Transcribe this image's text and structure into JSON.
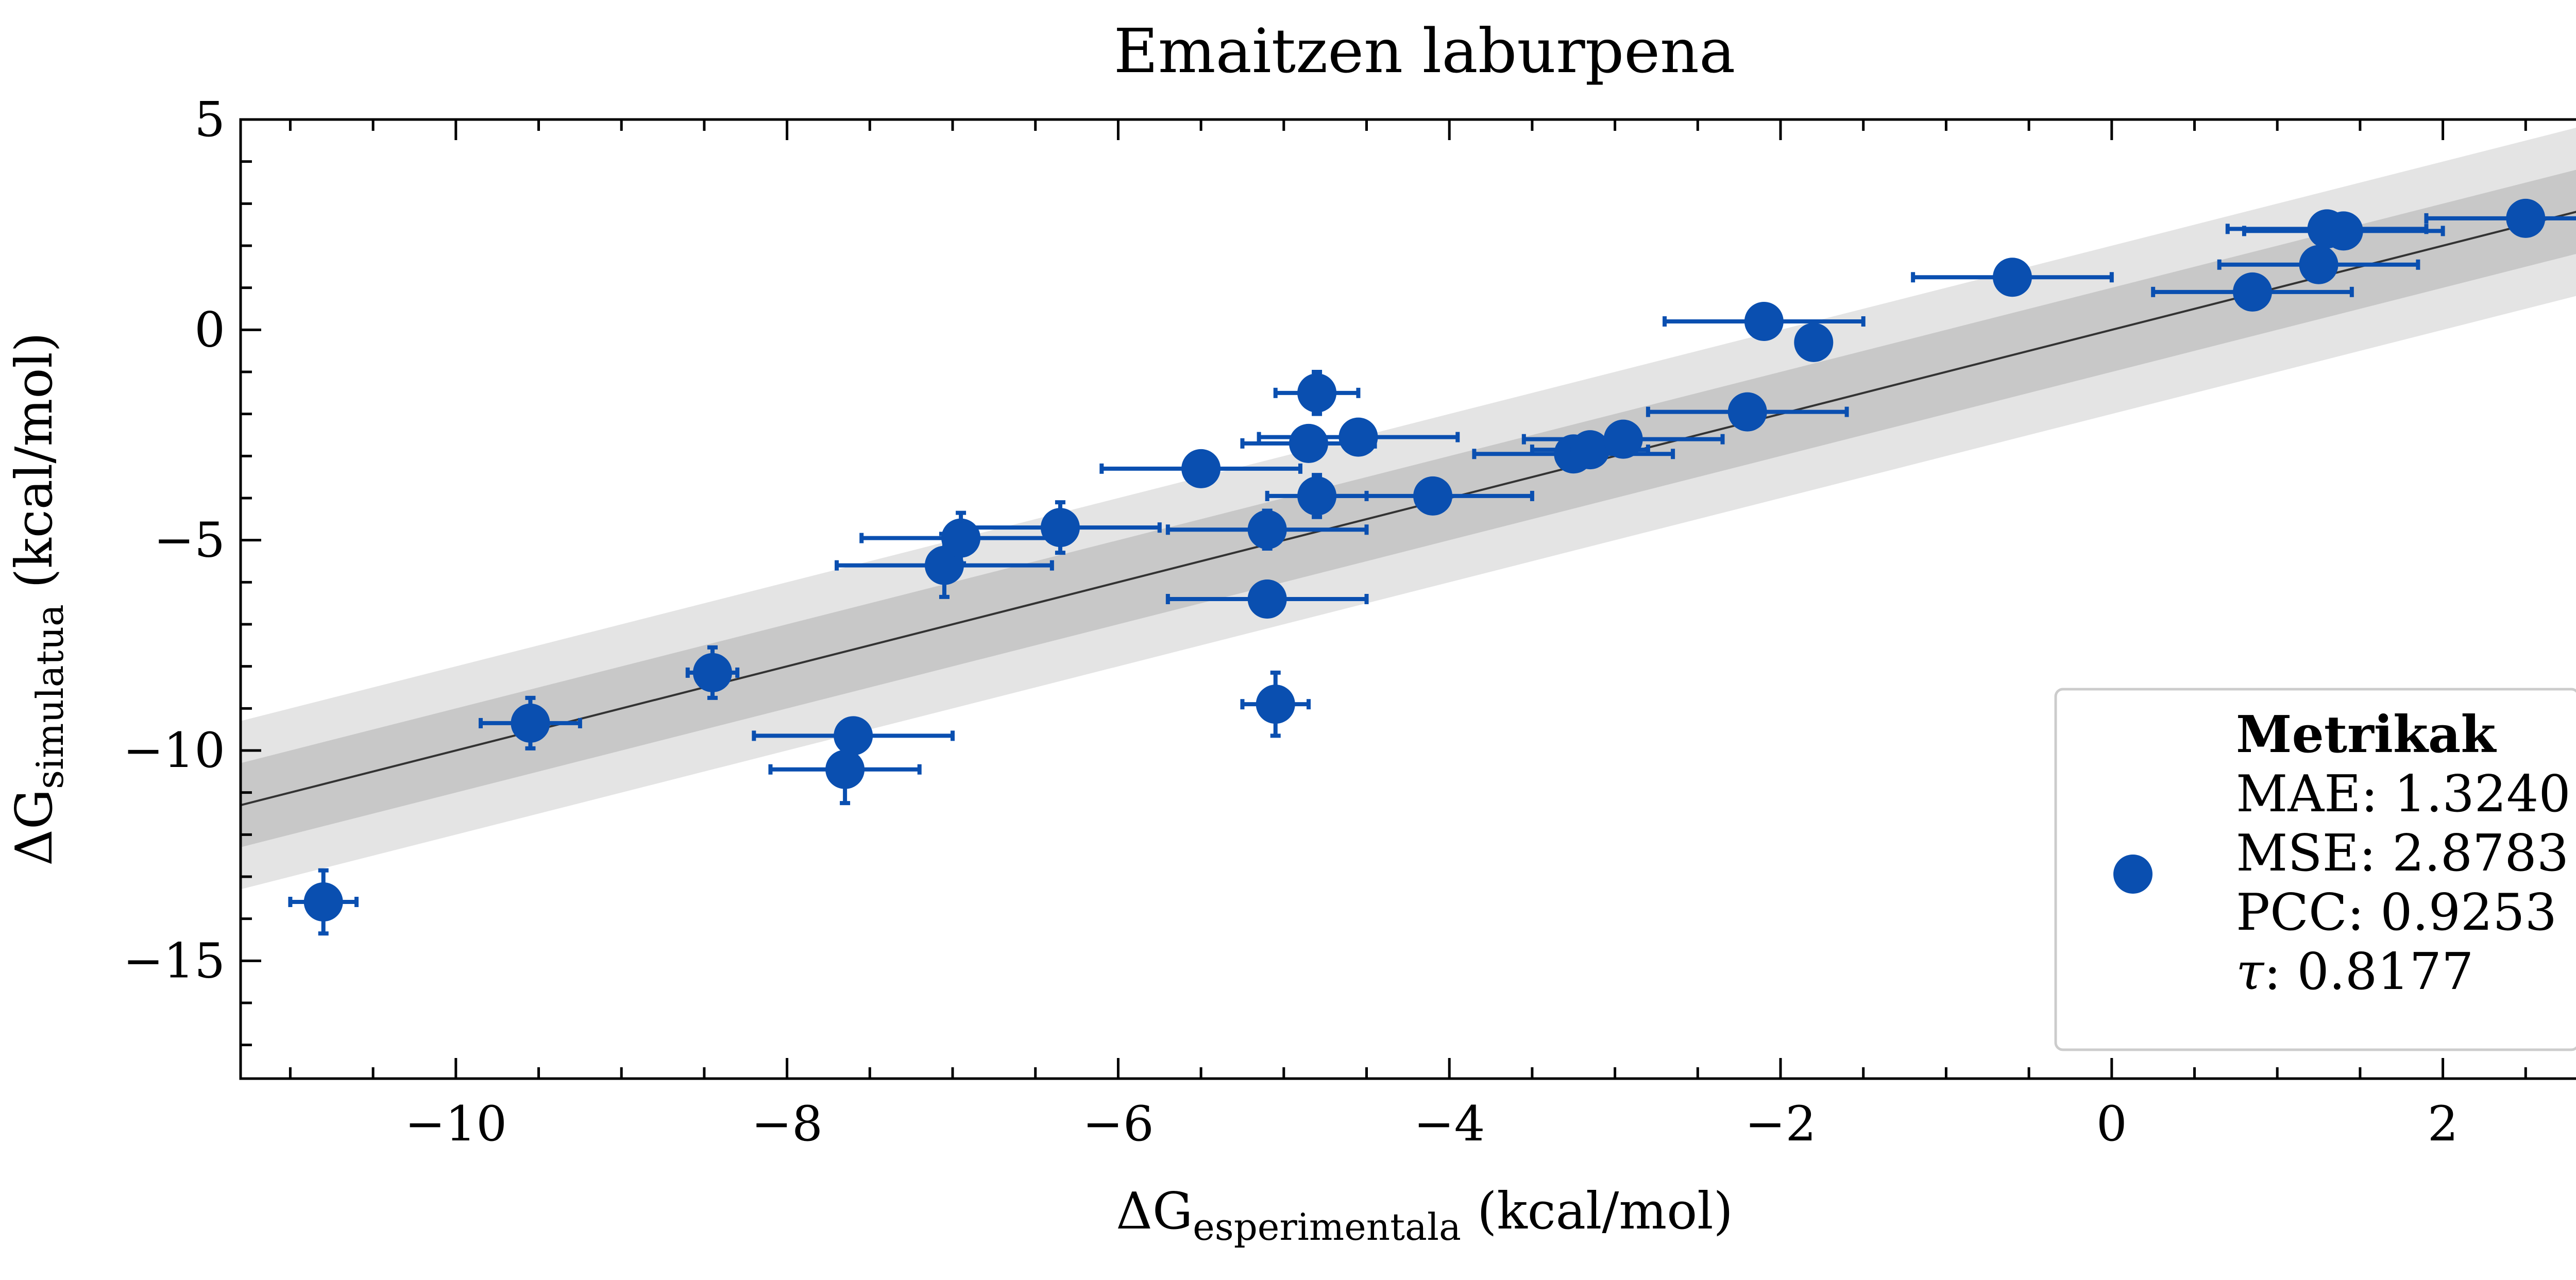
{
  "chart_data": {
    "type": "scatter",
    "title": "Emaitzen laburpena",
    "xlabel": {
      "prefix": "ΔG",
      "subscript": "esperimentala",
      "suffix": " (kcal/mol)"
    },
    "ylabel": {
      "prefix": "ΔG",
      "subscript": "simulatua",
      "suffix": " (kcal/mol)"
    },
    "xlim": [
      -11.3,
      3.0
    ],
    "ylim": [
      -17.8,
      5.0
    ],
    "xticks": [
      {
        "value": -10,
        "label": "−10"
      },
      {
        "value": -8,
        "label": "−8"
      },
      {
        "value": -6,
        "label": "−6"
      },
      {
        "value": -4,
        "label": "−4"
      },
      {
        "value": -2,
        "label": "−2"
      },
      {
        "value": 0,
        "label": "0"
      },
      {
        "value": 2,
        "label": "2"
      }
    ],
    "yticks": [
      {
        "value": 5,
        "label": "5"
      },
      {
        "value": 0,
        "label": "0"
      },
      {
        "value": -5,
        "label": "−5"
      },
      {
        "value": -10,
        "label": "−10"
      },
      {
        "value": -15,
        "label": "−15"
      }
    ],
    "grid": false,
    "legend_position": "bottom-right",
    "colors": {
      "points": "#0a4fb0",
      "identity_line": "#333333",
      "band_inner": "#c8c8c8",
      "band_outer": "#e4e4e4"
    },
    "identity_line": {
      "slope": 1,
      "intercept": 0
    },
    "bands": [
      {
        "half_width": 2.0,
        "color_key": "band_outer"
      },
      {
        "half_width": 1.0,
        "color_key": "band_inner"
      }
    ],
    "points": [
      {
        "x": -10.8,
        "y": -13.6,
        "xerr": 0.2,
        "yerr": 0.75
      },
      {
        "x": -9.55,
        "y": -9.35,
        "xerr": 0.3,
        "yerr": 0.6
      },
      {
        "x": -8.45,
        "y": -8.15,
        "xerr": 0.15,
        "yerr": 0.6
      },
      {
        "x": -7.6,
        "y": -9.65,
        "xerr": 0.6,
        "yerr": 0.4
      },
      {
        "x": -7.65,
        "y": -10.45,
        "xerr": 0.45,
        "yerr": 0.8
      },
      {
        "x": -7.05,
        "y": -5.6,
        "xerr": 0.65,
        "yerr": 0.75
      },
      {
        "x": -6.95,
        "y": -4.95,
        "xerr": 0.6,
        "yerr": 0.6
      },
      {
        "x": -6.35,
        "y": -4.7,
        "xerr": 0.6,
        "yerr": 0.6
      },
      {
        "x": -5.5,
        "y": -3.3,
        "xerr": 0.6,
        "yerr": 0.3
      },
      {
        "x": -5.1,
        "y": -4.75,
        "xerr": 0.6,
        "yerr": 0.45
      },
      {
        "x": -5.1,
        "y": -6.4,
        "xerr": 0.6,
        "yerr": 0.2
      },
      {
        "x": -5.05,
        "y": -8.9,
        "xerr": 0.2,
        "yerr": 0.75
      },
      {
        "x": -4.8,
        "y": -1.5,
        "xerr": 0.25,
        "yerr": 0.5
      },
      {
        "x": -4.85,
        "y": -2.7,
        "xerr": 0.4,
        "yerr": 0.35
      },
      {
        "x": -4.55,
        "y": -2.55,
        "xerr": 0.6,
        "yerr": 0.3
      },
      {
        "x": -4.8,
        "y": -3.95,
        "xerr": 0.3,
        "yerr": 0.5
      },
      {
        "x": -4.1,
        "y": -3.95,
        "xerr": 0.6,
        "yerr": 0.3
      },
      {
        "x": -3.25,
        "y": -2.95,
        "xerr": 0.6,
        "yerr": 0.3
      },
      {
        "x": -3.15,
        "y": -2.85,
        "xerr": 0.35,
        "yerr": 0.3
      },
      {
        "x": -2.95,
        "y": -2.6,
        "xerr": 0.6,
        "yerr": 0.3
      },
      {
        "x": -2.2,
        "y": -1.95,
        "xerr": 0.6,
        "yerr": 0.3
      },
      {
        "x": -2.1,
        "y": 0.2,
        "xerr": 0.6,
        "yerr": 0.3
      },
      {
        "x": -1.8,
        "y": -0.3,
        "xerr": 0.1,
        "yerr": 0.3
      },
      {
        "x": -0.6,
        "y": 1.25,
        "xerr": 0.6,
        "yerr": 0.3
      },
      {
        "x": 0.85,
        "y": 0.9,
        "xerr": 0.6,
        "yerr": 0.3
      },
      {
        "x": 1.25,
        "y": 1.55,
        "xerr": 0.6,
        "yerr": 0.3
      },
      {
        "x": 1.3,
        "y": 2.4,
        "xerr": 0.6,
        "yerr": 0.3
      },
      {
        "x": 1.4,
        "y": 2.35,
        "xerr": 0.6,
        "yerr": 0.3
      },
      {
        "x": 2.5,
        "y": 2.65,
        "xerr": 0.6,
        "yerr": 0.2
      }
    ],
    "legend": {
      "title": "Metrikak",
      "lines": [
        "MAE: 1.3240",
        "MSE: 2.8783",
        "PCC: 0.9253"
      ],
      "tau_symbol": "τ",
      "tau_value": ": 0.8177"
    }
  }
}
